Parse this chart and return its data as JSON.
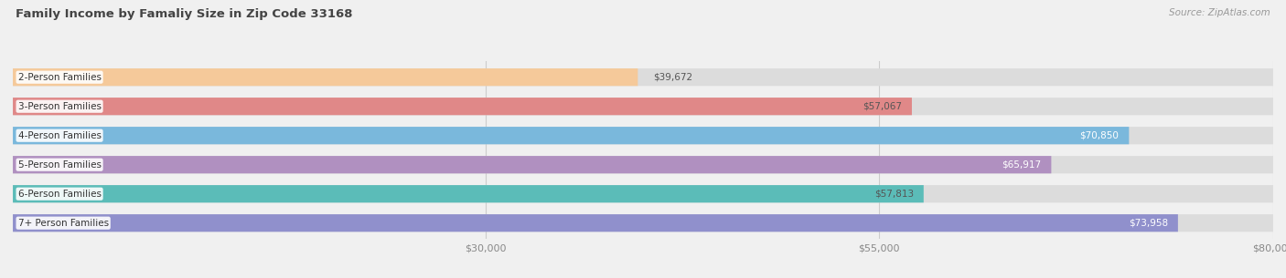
{
  "title": "Family Income by Famaliy Size in Zip Code 33168",
  "source": "Source: ZipAtlas.com",
  "categories": [
    "2-Person Families",
    "3-Person Families",
    "4-Person Families",
    "5-Person Families",
    "6-Person Families",
    "7+ Person Families"
  ],
  "values": [
    39672,
    57067,
    70850,
    65917,
    57813,
    73958
  ],
  "bar_colors": [
    "#f5c99a",
    "#e08888",
    "#7ab8dc",
    "#b090c0",
    "#5bbcb8",
    "#9090cc"
  ],
  "label_colors": [
    "#555555",
    "#555555",
    "#ffffff",
    "#ffffff",
    "#555555",
    "#ffffff"
  ],
  "xlim": [
    0,
    80000
  ],
  "xticks": [
    30000,
    55000,
    80000
  ],
  "xtick_labels": [
    "$30,000",
    "$55,000",
    "$80,000"
  ],
  "value_labels": [
    "$39,672",
    "$57,067",
    "$70,850",
    "$65,917",
    "$57,813",
    "$73,958"
  ],
  "background_color": "#f0f0f0",
  "bar_bg_color": "#dcdcdc"
}
